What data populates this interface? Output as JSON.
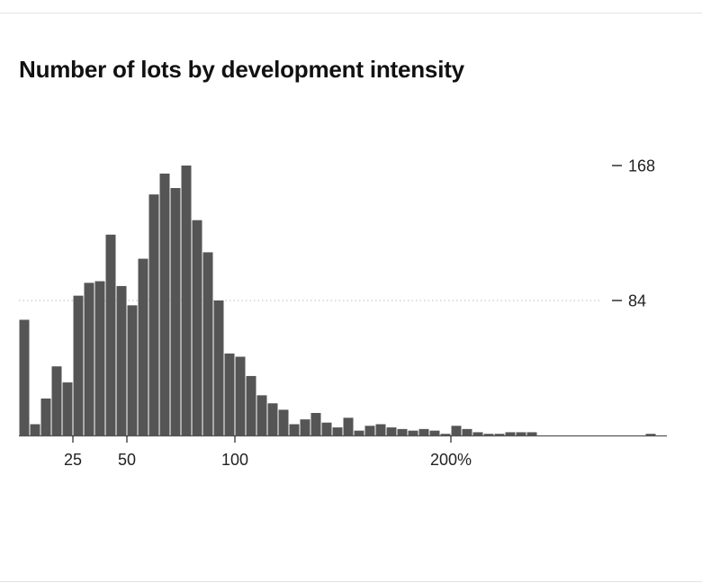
{
  "chart_data": {
    "type": "bar",
    "title": "Number of lots by development intensity",
    "xlabel": "",
    "ylabel": "",
    "bin_width": 5,
    "x_start": 0,
    "x_ticks": [
      {
        "value": 25,
        "label": "25"
      },
      {
        "value": 50,
        "label": "50"
      },
      {
        "value": 100,
        "label": "100"
      },
      {
        "value": 200,
        "label": "200%"
      }
    ],
    "y_ticks": [
      {
        "value": 168,
        "label": "168"
      },
      {
        "value": 84,
        "label": "84"
      }
    ],
    "ylim": [
      0,
      168
    ],
    "reference_line": 84,
    "values": [
      72,
      7,
      23,
      43,
      33,
      87,
      95,
      96,
      125,
      93,
      81,
      110,
      150,
      163,
      154,
      168,
      134,
      114,
      84,
      51,
      49,
      37,
      25,
      20,
      16,
      7,
      10,
      14,
      8,
      5,
      11,
      3,
      6,
      7,
      5,
      4,
      3,
      4,
      3,
      1,
      6,
      4,
      2,
      1,
      1,
      2,
      2,
      2,
      0,
      0,
      0,
      0,
      0,
      0,
      0,
      0,
      0,
      0,
      1
    ],
    "colors": {
      "bars": "#555555",
      "axis": "#555555",
      "gridline": "#bbbbbb",
      "text": "#222222"
    }
  }
}
